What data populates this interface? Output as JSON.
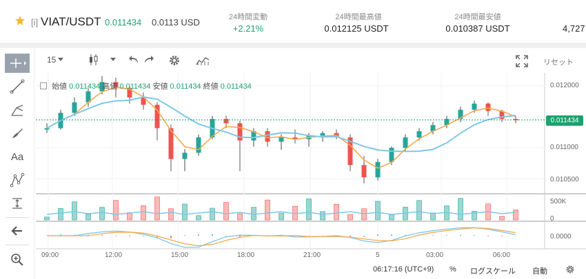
{
  "header": {
    "prefix": "[i]",
    "pair": "VIAT/USDT",
    "price": "0.011434",
    "usd_price": "0.0113 USD",
    "stats": [
      {
        "label": "24時間変動",
        "value": "+2.21%",
        "positive": true
      },
      {
        "label": "24時間最高値",
        "value": "0.012125 USDT",
        "positive": false
      },
      {
        "label": "24時間最安値",
        "value": "0.010387 USDT",
        "positive": false
      }
    ],
    "volume_partial": "4,727"
  },
  "toolbar": {
    "interval": "15",
    "reset": "リセット"
  },
  "left_tools": [
    {
      "icon": "crosshair-icon"
    },
    {
      "icon": "trendline-icon"
    },
    {
      "icon": "fork-icon"
    },
    {
      "icon": "brush-icon"
    },
    {
      "icon": "text-icon",
      "label": "Aa"
    },
    {
      "icon": "pattern-icon"
    },
    {
      "icon": "measure-icon"
    },
    {
      "icon": "arrow-left-icon"
    },
    {
      "icon": "zoom-icon"
    }
  ],
  "ohlc": {
    "open_label": "始値",
    "open": "0.011434",
    "high_label": "高値",
    "high": "0.011434",
    "low_label": "安値",
    "low": "0.011434",
    "close_label": "終値",
    "close": "0.011434"
  },
  "price_axis": [
    "0.012000",
    "0.011000",
    "0.010500"
  ],
  "current_price_tag": "0.011434",
  "volume_axis": [
    "500K",
    "0"
  ],
  "macd_axis": "0.0000",
  "time_axis": [
    "09:00",
    "12:00",
    "15:00",
    "18:00",
    "21:00",
    "5",
    "03:00",
    "06:00"
  ],
  "bottom": {
    "time": "06:17:16 (UTC+9)",
    "percent": "%",
    "log": "ログスケール",
    "auto": "自動"
  },
  "colors": {
    "up": "#26a69a",
    "down": "#ef5350",
    "ma_fast": "#f5a94b",
    "ma_slow": "#7cc7e8",
    "price_line": "#1aa36f"
  },
  "chart_data": {
    "type": "candlestick",
    "y_range": [
      0.0103,
      0.0122
    ],
    "candles": [
      [
        0.01128,
        0.01138,
        0.01122,
        0.0113
      ],
      [
        0.0113,
        0.0116,
        0.01128,
        0.01155
      ],
      [
        0.01155,
        0.0118,
        0.0115,
        0.01172
      ],
      [
        0.01172,
        0.01195,
        0.01165,
        0.0119
      ],
      [
        0.0119,
        0.01215,
        0.01185,
        0.01205
      ],
      [
        0.01205,
        0.01212,
        0.0118,
        0.01195
      ],
      [
        0.01195,
        0.01198,
        0.0117,
        0.0118
      ],
      [
        0.0118,
        0.01188,
        0.0116,
        0.01168
      ],
      [
        0.01168,
        0.01172,
        0.0111,
        0.0113
      ],
      [
        0.0113,
        0.01136,
        0.0106,
        0.0108
      ],
      [
        0.0108,
        0.01096,
        0.0106,
        0.0109
      ],
      [
        0.0109,
        0.0112,
        0.01085,
        0.01115
      ],
      [
        0.01115,
        0.0115,
        0.01112,
        0.01145
      ],
      [
        0.01145,
        0.0115,
        0.0113,
        0.01138
      ],
      [
        0.01138,
        0.01142,
        0.0106,
        0.0111
      ],
      [
        0.0111,
        0.0113,
        0.011,
        0.01125
      ],
      [
        0.01125,
        0.0113,
        0.011,
        0.01108
      ],
      [
        0.01108,
        0.0112,
        0.01095,
        0.01115
      ],
      [
        0.01115,
        0.01128,
        0.01105,
        0.01112
      ],
      [
        0.01112,
        0.01122,
        0.011,
        0.01118
      ],
      [
        0.01118,
        0.01125,
        0.01108,
        0.01122
      ],
      [
        0.01122,
        0.01128,
        0.01112,
        0.01115
      ],
      [
        0.01115,
        0.0112,
        0.0106,
        0.0107
      ],
      [
        0.0107,
        0.01085,
        0.0104,
        0.0105
      ],
      [
        0.0105,
        0.0108,
        0.01045,
        0.01075
      ],
      [
        0.01075,
        0.011,
        0.0107,
        0.01098
      ],
      [
        0.01098,
        0.0112,
        0.01092,
        0.01115
      ],
      [
        0.01115,
        0.0113,
        0.0111,
        0.01125
      ],
      [
        0.01125,
        0.0114,
        0.0112,
        0.01135
      ],
      [
        0.01135,
        0.0115,
        0.0113,
        0.01145
      ],
      [
        0.01145,
        0.01165,
        0.0114,
        0.0116
      ],
      [
        0.0116,
        0.01175,
        0.01155,
        0.0117
      ],
      [
        0.0117,
        0.01172,
        0.0115,
        0.01158
      ],
      [
        0.01158,
        0.0116,
        0.0114,
        0.01145
      ],
      [
        0.01145,
        0.0115,
        0.01138,
        0.01143
      ]
    ]
  }
}
